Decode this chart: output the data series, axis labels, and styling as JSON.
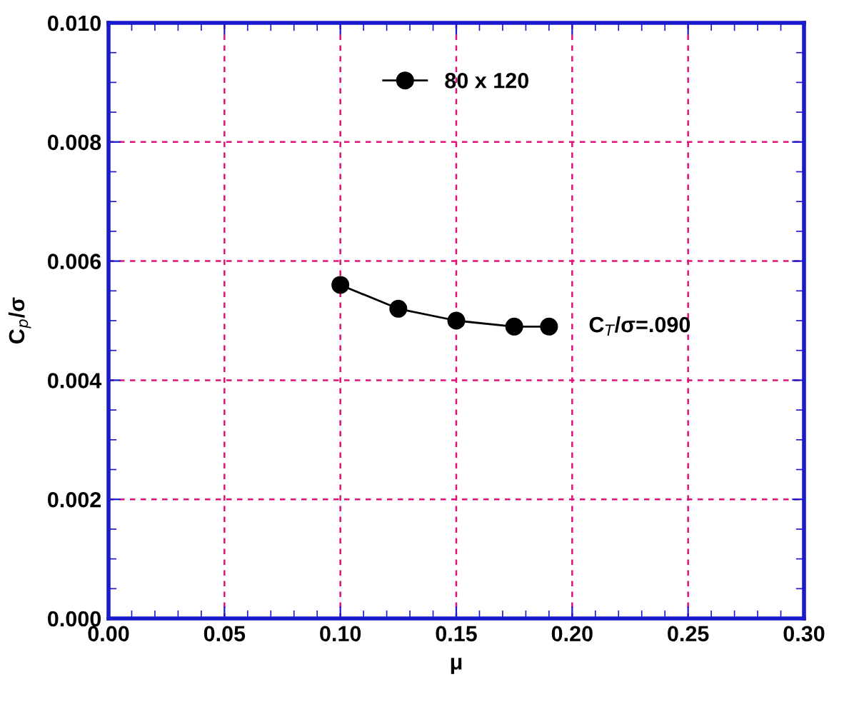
{
  "chart_data": {
    "type": "line",
    "xlabel": "μ",
    "ylabel": "C$_{p}$/σ",
    "series": [
      {
        "name": "80 x 120",
        "color": "#000000",
        "x": [
          0.1,
          0.125,
          0.15,
          0.175,
          0.19
        ],
        "values": [
          0.0056,
          0.0052,
          0.005,
          0.0049,
          0.0049
        ]
      }
    ],
    "xlim": [
      0,
      0.3
    ],
    "xticks": [
      {
        "value": 0,
        "label": "0.00"
      },
      {
        "value": 0.05,
        "label": "0.05"
      },
      {
        "value": 0.1,
        "label": "0.10"
      },
      {
        "value": 0.15,
        "label": "0.15"
      },
      {
        "value": 0.2,
        "label": "0.20"
      },
      {
        "value": 0.25,
        "label": "0.25"
      },
      {
        "value": 0.3,
        "label": "0.30"
      }
    ],
    "ylim": [
      0,
      0.01
    ],
    "yticks": [
      {
        "value": 0,
        "label": "0.000"
      },
      {
        "value": 0.002,
        "label": "0.002"
      },
      {
        "value": 0.004,
        "label": "0.004"
      },
      {
        "value": 0.006,
        "label": "0.006"
      },
      {
        "value": 0.008,
        "label": "0.008"
      },
      {
        "value": 0.01,
        "label": "0.010"
      }
    ],
    "annotations": [
      {
        "text": "C$_{T}$/σ=.090",
        "x": 0.19,
        "y": 0.0049
      }
    ],
    "grid": true,
    "legend": "top",
    "marker": "circle",
    "line_style": "solid"
  }
}
